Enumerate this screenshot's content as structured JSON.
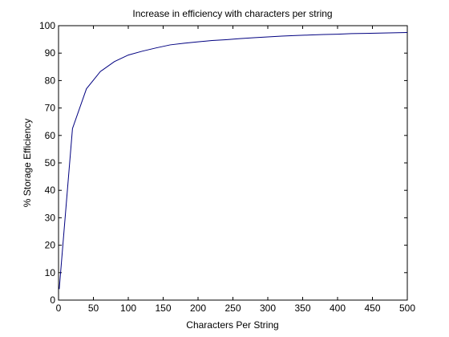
{
  "chart_data": {
    "type": "line",
    "title": "Increase in efficiency with characters per string",
    "xlabel": "Characters Per String",
    "ylabel": "% Storage Efficiency",
    "xlim": [
      0,
      500
    ],
    "ylim": [
      0,
      100
    ],
    "xticks": [
      "0",
      "50",
      "100",
      "150",
      "200",
      "250",
      "300",
      "350",
      "400",
      "450",
      "500"
    ],
    "yticks": [
      "0",
      "10",
      "20",
      "30",
      "40",
      "50",
      "60",
      "70",
      "80",
      "90",
      "100"
    ],
    "grid": false,
    "series": [
      {
        "color": "#000080",
        "x": [
          1,
          20,
          40,
          60,
          80,
          100,
          120,
          140,
          160,
          180,
          200,
          220,
          240,
          260,
          280,
          300,
          320,
          340,
          360,
          380,
          400,
          420,
          440,
          460,
          480,
          500
        ],
        "y": [
          4,
          62.5,
          77,
          83.3,
          86.9,
          89.3,
          90.7,
          91.9,
          93.0,
          93.6,
          94.1,
          94.6,
          94.9,
          95.3,
          95.6,
          95.9,
          96.2,
          96.4,
          96.6,
          96.8,
          96.9,
          97.1,
          97.2,
          97.3,
          97.4,
          97.5
        ]
      }
    ]
  }
}
